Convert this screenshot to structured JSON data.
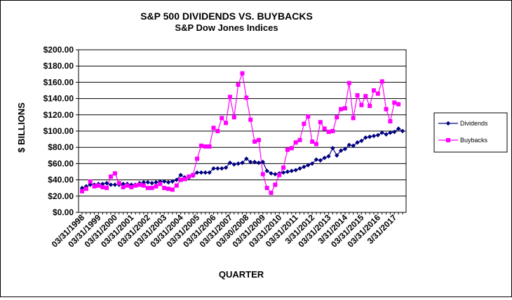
{
  "chart_data": {
    "type": "line",
    "title": "S&P 500 DIVIDENDS VS. BUYBACKS",
    "subtitle": "S&P Dow Jones Indices",
    "xlabel": "QUARTER",
    "ylabel": "$ BILLIONS",
    "ylim": [
      0,
      200
    ],
    "y_ticks": [
      "$0.00",
      "$20.00",
      "$40.00",
      "$60.00",
      "$80.00",
      "$100.00",
      "$120.00",
      "$140.00",
      "$160.00",
      "$180.00",
      "$200.00"
    ],
    "x_tick_labels": [
      {
        "label": "03/31/1998",
        "index": 0
      },
      {
        "label": "03/31/1999",
        "index": 4
      },
      {
        "label": "03/31/2000",
        "index": 8
      },
      {
        "label": "03/31/2001",
        "index": 12
      },
      {
        "label": "03/31/2002",
        "index": 16
      },
      {
        "label": "03/31/2003",
        "index": 20
      },
      {
        "label": "03/31/2004",
        "index": 24
      },
      {
        "label": "03/31/2005",
        "index": 28
      },
      {
        "label": "03/31/2006",
        "index": 32
      },
      {
        "label": "03/31/2007",
        "index": 36
      },
      {
        "label": "03/30/2008",
        "index": 40
      },
      {
        "label": "03/31/2009",
        "index": 44
      },
      {
        "label": "03/31/2010",
        "index": 48
      },
      {
        "label": "03/31/2011",
        "index": 52
      },
      {
        "label": "3/31/2012",
        "index": 56
      },
      {
        "label": "03/31/2013",
        "index": 60
      },
      {
        "label": "3/31/2014",
        "index": 64
      },
      {
        "label": "03/31/2015",
        "index": 68
      },
      {
        "label": "03/31/2016",
        "index": 72
      },
      {
        "label": "3/31/2017",
        "index": 76
      }
    ],
    "grid": true,
    "legend_position": "right",
    "series": [
      {
        "name": "Dividends",
        "color": "#000080",
        "marker": "diamond",
        "values": [
          30,
          32,
          34,
          34,
          35,
          35,
          36,
          34,
          34,
          34,
          35,
          35,
          34,
          34,
          36,
          37,
          37,
          36,
          37,
          38,
          38,
          37,
          38,
          40,
          46,
          43,
          43,
          45,
          49,
          49,
          49,
          49,
          54,
          54,
          54,
          55,
          61,
          59,
          60,
          61,
          66,
          62,
          62,
          61,
          62,
          51,
          48,
          47,
          48,
          49,
          50,
          51,
          52,
          54,
          56,
          58,
          60,
          65,
          64,
          67,
          69,
          79,
          70,
          76,
          78,
          83,
          82,
          86,
          88,
          92,
          93,
          94,
          95,
          98,
          96,
          98,
          99,
          103,
          100
        ]
      },
      {
        "name": "Buybacks",
        "color": "#ff00ff",
        "marker": "square",
        "values": [
          26,
          29,
          38,
          32,
          33,
          31,
          30,
          44,
          48,
          36,
          31,
          33,
          31,
          33,
          34,
          33,
          30,
          30,
          32,
          35,
          30,
          29,
          28,
          33,
          40,
          41,
          44,
          46,
          66,
          82,
          81,
          81,
          104,
          100,
          116,
          110,
          142,
          117,
          157,
          171,
          141,
          114,
          87,
          89,
          47,
          30,
          24,
          34,
          46,
          55,
          77,
          79,
          86,
          89,
          109,
          118,
          87,
          84,
          111,
          103,
          99,
          100,
          117,
          127,
          128,
          159,
          116,
          144,
          132,
          143,
          131,
          150,
          146,
          161,
          127,
          112,
          135,
          133
        ]
      }
    ]
  }
}
